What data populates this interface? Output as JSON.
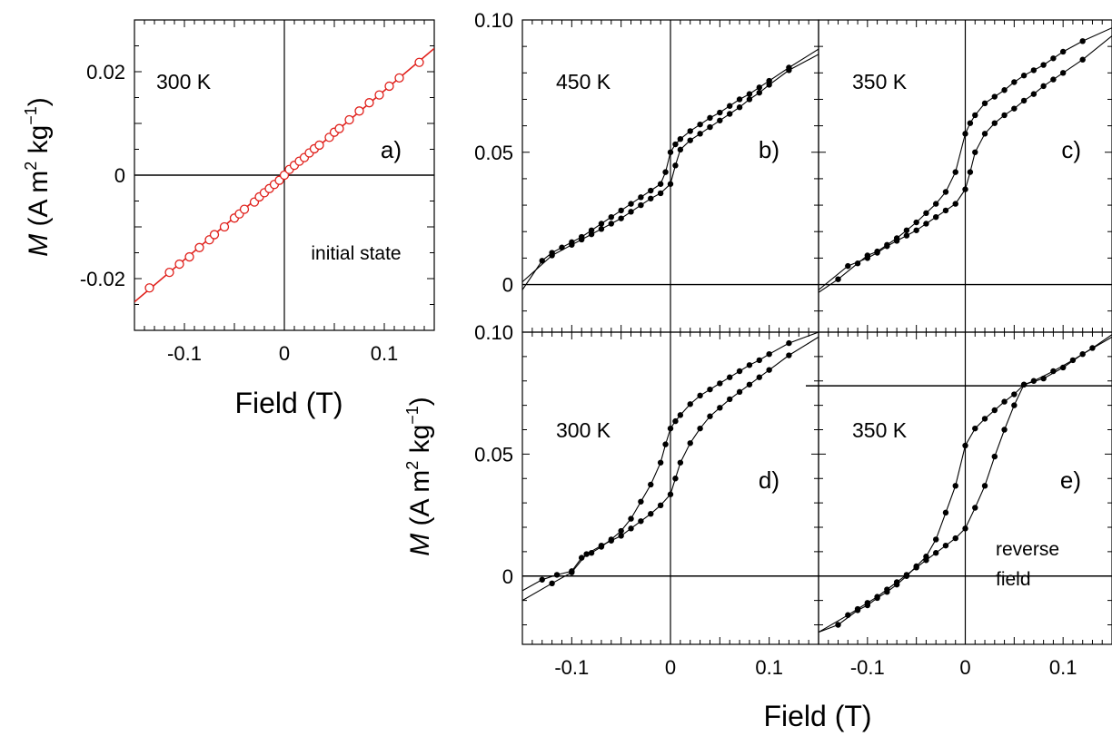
{
  "colors": {
    "panel_a": "#e0201b",
    "panels_bcde": "#000000"
  },
  "labels": {
    "ylabel_prefix": "M",
    "ylabel_rest": " (A m",
    "ylabel_sup1": "2",
    "ylabel_mid": " kg",
    "ylabel_sup2": "−1",
    "ylabel_close": ")",
    "xlabel": "Field (T)"
  },
  "chart_data": [
    {
      "id": "a",
      "type": "scatter",
      "panel_label": "a)",
      "temperature": "300 K",
      "annotation": "initial state",
      "xlim": [
        -0.15,
        0.15
      ],
      "ylim": [
        -0.03,
        0.03
      ],
      "xticks": [
        "-0.1",
        "0",
        "0.1"
      ],
      "yticks": [
        "-0.02",
        "0",
        "0.02"
      ],
      "marker": "open-circle",
      "fit_line": [
        [
          -0.15,
          -0.0245
        ],
        [
          0.15,
          0.0245
        ]
      ],
      "x": [
        -0.135,
        -0.115,
        -0.105,
        -0.095,
        -0.085,
        -0.075,
        -0.07,
        -0.06,
        -0.05,
        -0.045,
        -0.04,
        -0.03,
        -0.025,
        -0.02,
        -0.015,
        -0.01,
        -0.005,
        0.0,
        0.005,
        0.01,
        0.015,
        0.02,
        0.025,
        0.03,
        0.035,
        0.045,
        0.05,
        0.055,
        0.065,
        0.075,
        0.085,
        0.095,
        0.105,
        0.115,
        0.135
      ],
      "y": [
        -0.0218,
        -0.0188,
        -0.0172,
        -0.0158,
        -0.014,
        -0.0125,
        -0.0115,
        -0.01,
        -0.0083,
        -0.0075,
        -0.0066,
        -0.0052,
        -0.0042,
        -0.0034,
        -0.0026,
        -0.0018,
        -0.001,
        0.0,
        0.0011,
        0.0019,
        0.0027,
        0.0034,
        0.0043,
        0.0051,
        0.0058,
        0.0073,
        0.0083,
        0.009,
        0.0107,
        0.0124,
        0.014,
        0.0155,
        0.0172,
        0.0188,
        0.0218
      ]
    },
    {
      "id": "b",
      "type": "line",
      "panel_label": "b)",
      "temperature": "450 K",
      "xlim": [
        -0.15,
        0.15
      ],
      "ylim": [
        -0.018,
        0.1
      ],
      "xticks": [],
      "yticks": [
        "0",
        "0.05",
        "0.10"
      ],
      "series": [
        {
          "x": [
            -0.15,
            -0.13,
            -0.12,
            -0.11,
            -0.1,
            -0.09,
            -0.08,
            -0.07,
            -0.06,
            -0.05,
            -0.04,
            -0.03,
            -0.02,
            -0.01,
            -0.005,
            0.0,
            0.005,
            0.01,
            0.02,
            0.03,
            0.04,
            0.05,
            0.06,
            0.07,
            0.08,
            0.09,
            0.1,
            0.12,
            0.15
          ],
          "y": [
            -0.002,
            0.009,
            0.012,
            0.014,
            0.016,
            0.018,
            0.0205,
            0.023,
            0.0255,
            0.028,
            0.0305,
            0.033,
            0.0355,
            0.038,
            0.0425,
            0.05,
            0.053,
            0.055,
            0.058,
            0.0605,
            0.063,
            0.065,
            0.0675,
            0.07,
            0.072,
            0.0745,
            0.077,
            0.082,
            0.089
          ]
        },
        {
          "x": [
            -0.15,
            -0.12,
            -0.1,
            -0.09,
            -0.08,
            -0.07,
            -0.06,
            -0.05,
            -0.04,
            -0.03,
            -0.02,
            -0.01,
            0.0,
            0.005,
            0.01,
            0.02,
            0.03,
            0.04,
            0.05,
            0.06,
            0.07,
            0.08,
            0.09,
            0.1,
            0.12,
            0.15
          ],
          "y": [
            0.001,
            0.011,
            0.015,
            0.017,
            0.019,
            0.021,
            0.023,
            0.025,
            0.0275,
            0.03,
            0.0325,
            0.0345,
            0.038,
            0.045,
            0.051,
            0.0545,
            0.057,
            0.0595,
            0.062,
            0.0645,
            0.067,
            0.07,
            0.0725,
            0.0755,
            0.081,
            0.087
          ]
        }
      ]
    },
    {
      "id": "c",
      "type": "line",
      "panel_label": "c)",
      "temperature": "350 K",
      "xlim": [
        -0.15,
        0.15
      ],
      "ylim": [
        -0.018,
        0.1
      ],
      "xticks": [],
      "yticks": [],
      "series": [
        {
          "x": [
            -0.15,
            -0.13,
            -0.11,
            -0.1,
            -0.09,
            -0.08,
            -0.07,
            -0.06,
            -0.05,
            -0.04,
            -0.03,
            -0.02,
            -0.01,
            0.0,
            0.005,
            0.01,
            0.02,
            0.03,
            0.04,
            0.05,
            0.06,
            0.07,
            0.08,
            0.09,
            0.1,
            0.12,
            0.15
          ],
          "y": [
            -0.003,
            0.002,
            0.008,
            0.011,
            0.0125,
            0.015,
            0.0175,
            0.0205,
            0.0235,
            0.027,
            0.0305,
            0.035,
            0.0425,
            0.057,
            0.061,
            0.064,
            0.0685,
            0.071,
            0.0735,
            0.0765,
            0.079,
            0.081,
            0.083,
            0.0855,
            0.088,
            0.092,
            0.097
          ]
        },
        {
          "x": [
            -0.15,
            -0.12,
            -0.1,
            -0.09,
            -0.08,
            -0.07,
            -0.06,
            -0.05,
            -0.04,
            -0.03,
            -0.02,
            -0.01,
            0.0,
            0.005,
            0.01,
            0.02,
            0.03,
            0.04,
            0.05,
            0.06,
            0.07,
            0.08,
            0.09,
            0.1,
            0.12,
            0.15
          ],
          "y": [
            -0.002,
            0.007,
            0.01,
            0.012,
            0.0145,
            0.0165,
            0.0185,
            0.0205,
            0.023,
            0.0255,
            0.028,
            0.0305,
            0.036,
            0.0425,
            0.05,
            0.057,
            0.061,
            0.064,
            0.0665,
            0.0695,
            0.072,
            0.075,
            0.0775,
            0.08,
            0.085,
            0.094
          ]
        }
      ]
    },
    {
      "id": "d",
      "type": "line",
      "panel_label": "d)",
      "temperature": "300 K",
      "xlim": [
        -0.15,
        0.15
      ],
      "ylim": [
        -0.028,
        0.1
      ],
      "xticks": [
        "-0.1",
        "0",
        "0.1"
      ],
      "yticks": [
        "0",
        "0.05",
        "0.10"
      ],
      "series": [
        {
          "x": [
            -0.15,
            -0.13,
            -0.115,
            -0.1,
            -0.09,
            -0.08,
            -0.07,
            -0.06,
            -0.05,
            -0.04,
            -0.03,
            -0.02,
            -0.01,
            -0.005,
            0.0,
            0.005,
            0.01,
            0.02,
            0.03,
            0.04,
            0.05,
            0.06,
            0.07,
            0.08,
            0.09,
            0.1,
            0.12,
            0.15
          ],
          "y": [
            -0.006,
            -0.0015,
            0.0005,
            0.002,
            0.0075,
            0.0095,
            0.012,
            0.015,
            0.0185,
            0.0235,
            0.0305,
            0.0375,
            0.0465,
            0.054,
            0.0605,
            0.0635,
            0.066,
            0.0705,
            0.074,
            0.0765,
            0.079,
            0.0815,
            0.084,
            0.0865,
            0.0885,
            0.091,
            0.0955,
            0.1
          ]
        },
        {
          "x": [
            -0.15,
            -0.12,
            -0.1,
            -0.085,
            -0.07,
            -0.06,
            -0.05,
            -0.04,
            -0.03,
            -0.02,
            -0.01,
            0.0,
            0.005,
            0.01,
            0.02,
            0.03,
            0.04,
            0.05,
            0.06,
            0.07,
            0.08,
            0.09,
            0.1,
            0.12,
            0.15
          ],
          "y": [
            -0.01,
            -0.003,
            0.0015,
            0.009,
            0.0125,
            0.0145,
            0.0165,
            0.0195,
            0.0225,
            0.0255,
            0.029,
            0.0335,
            0.04,
            0.0465,
            0.0545,
            0.0605,
            0.0655,
            0.069,
            0.0725,
            0.0755,
            0.0785,
            0.0815,
            0.0845,
            0.0905,
            0.098
          ]
        }
      ]
    },
    {
      "id": "e",
      "type": "line",
      "panel_label": "e)",
      "temperature": "350 K",
      "annotation_line1": "reverse",
      "annotation_line2": "field",
      "xlim": [
        -0.15,
        0.15
      ],
      "ylim": [
        -0.028,
        0.1
      ],
      "xticks": [
        "-0.1",
        "0",
        "0.1"
      ],
      "yticks": [],
      "reference_level": 0.078,
      "series": [
        {
          "x": [
            -0.15,
            -0.13,
            -0.11,
            -0.1,
            -0.09,
            -0.08,
            -0.07,
            -0.06,
            -0.05,
            -0.04,
            -0.03,
            -0.02,
            -0.01,
            0.0,
            0.01,
            0.02,
            0.03,
            0.04,
            0.05,
            0.06,
            0.07,
            0.09,
            0.11,
            0.13,
            0.15
          ],
          "y": [
            -0.023,
            -0.02,
            -0.014,
            -0.012,
            -0.009,
            -0.0065,
            -0.0035,
            0.0,
            0.004,
            0.008,
            0.015,
            0.026,
            0.037,
            0.0535,
            0.0605,
            0.0645,
            0.068,
            0.0715,
            0.0745,
            0.0785,
            0.08,
            0.084,
            0.0885,
            0.0935,
            0.099
          ]
        },
        {
          "x": [
            -0.15,
            -0.12,
            -0.11,
            -0.1,
            -0.09,
            -0.08,
            -0.07,
            -0.06,
            -0.05,
            -0.04,
            -0.03,
            -0.02,
            -0.01,
            0.0,
            0.01,
            0.02,
            0.03,
            0.04,
            0.05,
            0.06,
            0.08,
            0.1,
            0.12,
            0.15
          ],
          "y": [
            -0.023,
            -0.016,
            -0.0135,
            -0.011,
            -0.0085,
            -0.0055,
            -0.0025,
            0.0005,
            0.0035,
            0.0065,
            0.0095,
            0.0125,
            0.0155,
            0.0195,
            0.028,
            0.037,
            0.049,
            0.06,
            0.07,
            0.0785,
            0.081,
            0.0855,
            0.091,
            0.098
          ]
        }
      ]
    }
  ]
}
